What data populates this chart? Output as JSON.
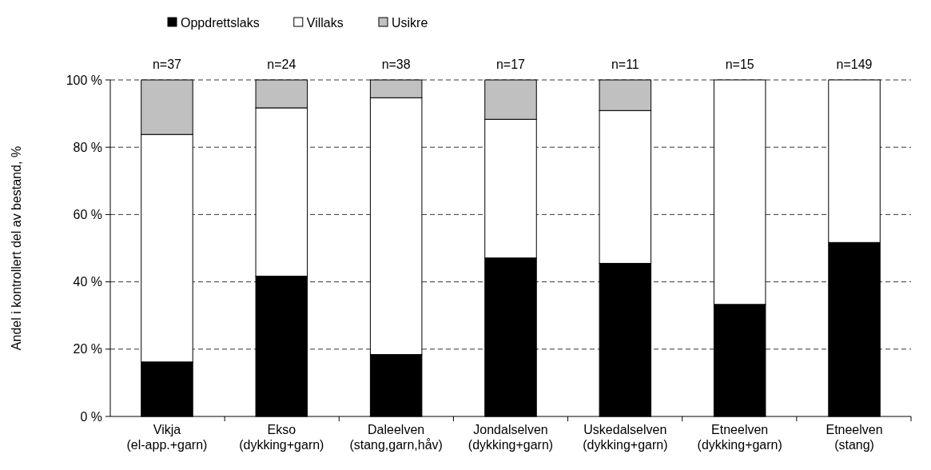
{
  "chart_data": {
    "type": "bar",
    "stacked": true,
    "ylabel": "Andel i kontrollert del av bestand, %",
    "categories": [
      "Vikja\n(el-app.+garn)",
      "Ekso\n(dykking+garn)",
      "Daleelven\n(stang,garn,håv)",
      "Jondalselven\n(dykking+garn)",
      "Uskedalselven\n(dykking+garn)",
      "Etneelven\n(dykking+garn)",
      "Etneelven\n(stang)"
    ],
    "series": [
      {
        "name": "Oppdrettslaks",
        "color": "#000000",
        "values": [
          16.2,
          41.7,
          18.4,
          47.1,
          45.5,
          33.3,
          51.7
        ]
      },
      {
        "name": "Villaks",
        "color": "#ffffff",
        "values": [
          67.6,
          50.0,
          76.3,
          41.2,
          45.4,
          66.7,
          48.3
        ]
      },
      {
        "name": "Usikre",
        "color": "#c0c0c0",
        "values": [
          16.2,
          8.3,
          5.3,
          11.7,
          9.1,
          0,
          0
        ]
      }
    ],
    "annotations": [
      {
        "text": "n=37",
        "x": "Vikja\n(el-app.+garn)",
        "y": 100
      },
      {
        "text": "n=24",
        "x": "Ekso\n(dykking+garn)",
        "y": 100
      },
      {
        "text": "n=38",
        "x": "Daleelven\n(stang,garn,håv)",
        "y": 100
      },
      {
        "text": "n=17",
        "x": "Jondalselven\n(dykking+garn)",
        "y": 100
      },
      {
        "text": "n=11",
        "x": "Uskedalselven\n(dykking+garn)",
        "y": 100
      },
      {
        "text": "n=15",
        "x": "Etneelven\n(dykking+garn)",
        "y": 100
      },
      {
        "text": "n=149",
        "x": "Etneelven\n(stang)",
        "y": 100
      }
    ],
    "ylim": [
      0,
      100
    ],
    "yticks": [
      {
        "value": 0,
        "label": "0 %"
      },
      {
        "value": 20,
        "label": "20 %"
      },
      {
        "value": 40,
        "label": "40 %"
      },
      {
        "value": 60,
        "label": "60 %"
      },
      {
        "value": 80,
        "label": "80 %"
      },
      {
        "value": 100,
        "label": "100 %"
      }
    ],
    "grid": "y",
    "legend": "top left"
  }
}
